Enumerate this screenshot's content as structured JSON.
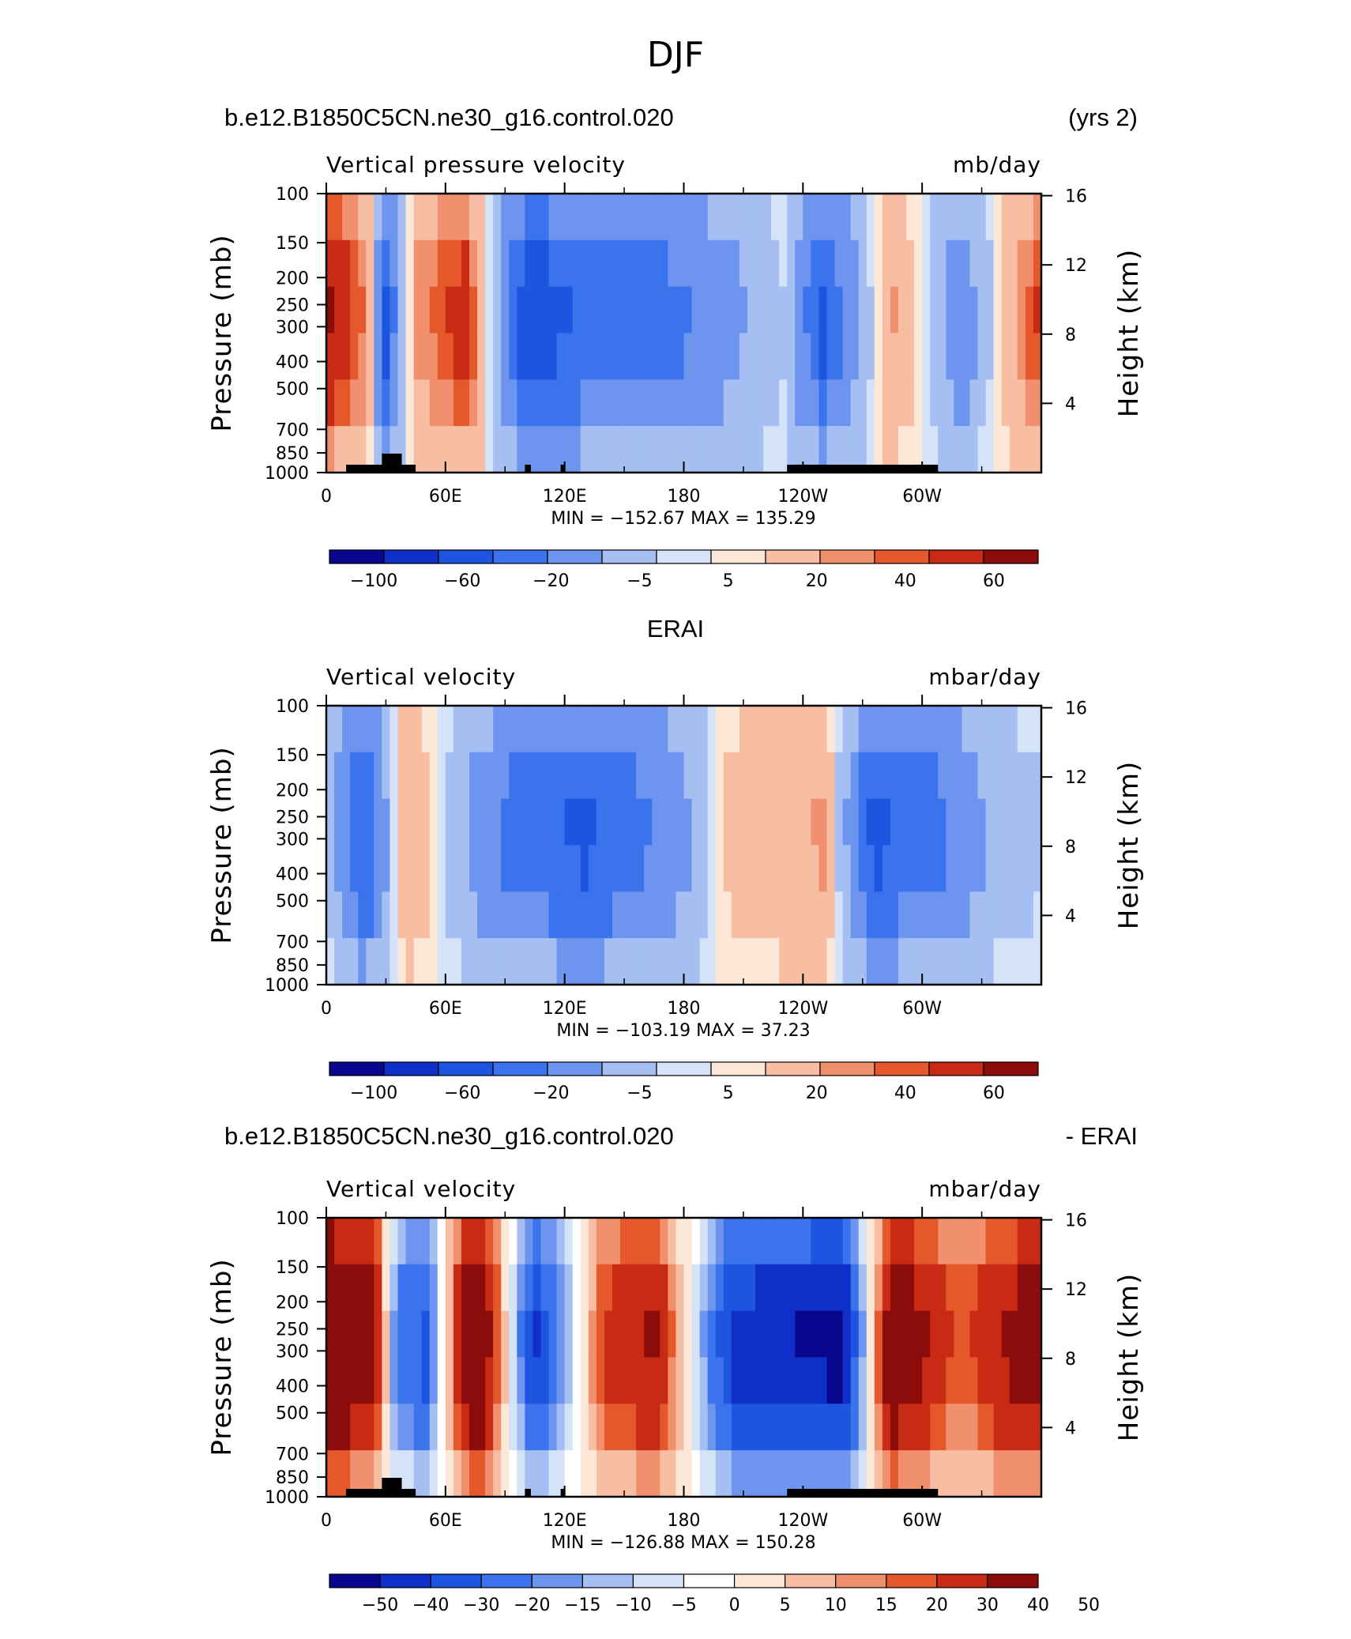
{
  "page_title": "DJF",
  "colors": {
    "model_scale": [
      "#08088f",
      "#0f2fc8",
      "#1e55e0",
      "#3a73ec",
      "#6d95ef",
      "#a5bff2",
      "#d4e3f8",
      "#fde8d8",
      "#f8bea4",
      "#f0906e",
      "#e4582c",
      "#c82a14",
      "#8c0c0c"
    ],
    "diff_scale": [
      "#08088f",
      "#0f2fc8",
      "#1e55e0",
      "#3a73ec",
      "#6d95ef",
      "#a5bff2",
      "#d4e3f8",
      "#ffffff",
      "#fde8d8",
      "#f8bea4",
      "#f0906e",
      "#e4582c",
      "#c82a14",
      "#8c0c0c"
    ]
  },
  "chart_data": [
    {
      "type": "heatmap",
      "left_title": "b.e12.B1850C5CN.ne30_g16.control.020",
      "right_title": "(yrs 2)",
      "variable": "Vertical pressure velocity",
      "units": "mb/day",
      "ylabel": "Pressure (mb)",
      "ylabel_right": "Height (km)",
      "pressure_ticks": [
        "100",
        "150",
        "200",
        "250",
        "300",
        "400",
        "500",
        "700",
        "850",
        "1000"
      ],
      "height_ticks": [
        "16",
        "12",
        "8",
        "4"
      ],
      "lon_ticks": [
        "0",
        "60E",
        "120E",
        "180",
        "120W",
        "60W"
      ],
      "stats": "MIN = −152.67   MAX = 135.29",
      "colorbar_labels": [
        "−100",
        "−60",
        "−20",
        "−5",
        "5",
        "20",
        "40",
        "60"
      ],
      "columns": [
        {
          "lon": 0,
          "value": 60
        },
        {
          "lon": 20,
          "value": 25
        },
        {
          "lon": 30,
          "value": -60
        },
        {
          "lon": 45,
          "value": 20
        },
        {
          "lon": 70,
          "value": 45
        },
        {
          "lon": 100,
          "value": -70
        },
        {
          "lon": 130,
          "value": -50
        },
        {
          "lon": 180,
          "value": -40
        },
        {
          "lon": 230,
          "value": -5
        },
        {
          "lon": 250,
          "value": -60
        },
        {
          "lon": 285,
          "value": 20
        },
        {
          "lon": 320,
          "value": -30
        },
        {
          "lon": 360,
          "value": 40
        }
      ]
    },
    {
      "type": "heatmap",
      "center_title": "ERAI",
      "variable": "Vertical velocity",
      "units": "mbar/day",
      "ylabel": "Pressure (mb)",
      "ylabel_right": "Height (km)",
      "pressure_ticks": [
        "100",
        "150",
        "200",
        "250",
        "300",
        "400",
        "500",
        "700",
        "850",
        "1000"
      ],
      "height_ticks": [
        "16",
        "12",
        "8",
        "4"
      ],
      "lon_ticks": [
        "0",
        "60E",
        "120E",
        "180",
        "120W",
        "60W"
      ],
      "stats": "MIN = −103.19   MAX =    37.23",
      "colorbar_labels": [
        "−100",
        "−60",
        "−20",
        "−5",
        "5",
        "20",
        "40",
        "60"
      ],
      "columns": [
        {
          "lon": 0,
          "value": -5
        },
        {
          "lon": 20,
          "value": -60
        },
        {
          "lon": 40,
          "value": 20
        },
        {
          "lon": 60,
          "value": -5
        },
        {
          "lon": 90,
          "value": -40
        },
        {
          "lon": 130,
          "value": -60
        },
        {
          "lon": 175,
          "value": -30
        },
        {
          "lon": 200,
          "value": 5
        },
        {
          "lon": 250,
          "value": 20
        },
        {
          "lon": 275,
          "value": -60
        },
        {
          "lon": 310,
          "value": -40
        },
        {
          "lon": 340,
          "value": -10
        },
        {
          "lon": 360,
          "value": -5
        }
      ]
    },
    {
      "type": "heatmap",
      "left_title": "b.e12.B1850C5CN.ne30_g16.control.020",
      "right_title": "- ERAI",
      "variable": "Vertical velocity",
      "units": "mbar/day",
      "ylabel": "Pressure (mb)",
      "ylabel_right": "Height (km)",
      "pressure_ticks": [
        "100",
        "150",
        "200",
        "250",
        "300",
        "400",
        "500",
        "700",
        "850",
        "1000"
      ],
      "height_ticks": [
        "16",
        "12",
        "8",
        "4"
      ],
      "lon_ticks": [
        "0",
        "60E",
        "120E",
        "180",
        "120W",
        "60W"
      ],
      "stats": "MIN = −126.88   MAX = 150.28",
      "colorbar_labels": [
        "−50",
        "−40",
        "−30",
        "−20",
        "−15",
        "−10",
        "−5",
        "0",
        "5",
        "10",
        "15",
        "20",
        "30",
        "40",
        "50"
      ],
      "columns": [
        {
          "lon": 0,
          "value": 50
        },
        {
          "lon": 25,
          "value": 30
        },
        {
          "lon": 35,
          "value": -20
        },
        {
          "lon": 50,
          "value": -30
        },
        {
          "lon": 75,
          "value": 50
        },
        {
          "lon": 105,
          "value": -40
        },
        {
          "lon": 140,
          "value": 20
        },
        {
          "lon": 165,
          "value": 30
        },
        {
          "lon": 205,
          "value": -40
        },
        {
          "lon": 260,
          "value": -50
        },
        {
          "lon": 285,
          "value": 40
        },
        {
          "lon": 320,
          "value": 15
        },
        {
          "lon": 360,
          "value": 40
        }
      ]
    }
  ]
}
